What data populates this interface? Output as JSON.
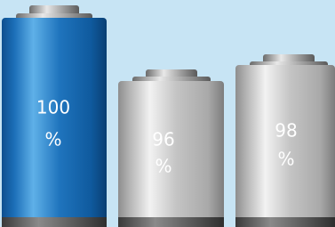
{
  "batteries": [
    {
      "value": 100,
      "unit": "%"
    },
    {
      "value": 96,
      "unit": "%"
    },
    {
      "value": 98,
      "unit": "%"
    }
  ]
}
